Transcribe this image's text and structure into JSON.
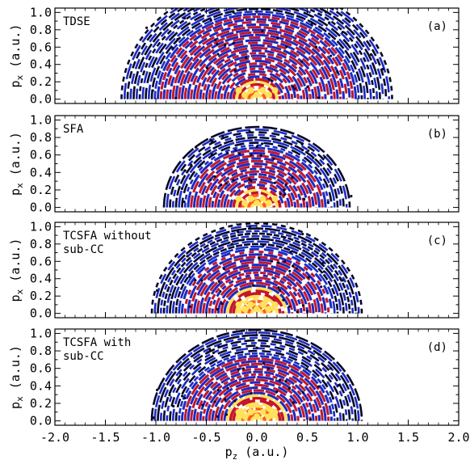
{
  "colors": {
    "ring_dark": "#060628",
    "ring_blue": "#1a2bc2",
    "ring_red": "#c4162a",
    "ring_orange": "#ff5a1e",
    "ring_yellow": "#ffe25a",
    "axis": "#000000",
    "background": "#ffffff"
  },
  "x_axis": {
    "label_main": "p",
    "label_sub": "z",
    "label_unit": " (a.u.)",
    "range": [
      -2.0,
      2.0
    ],
    "ticks": [
      {
        "value": -2.0,
        "label": "-2.0"
      },
      {
        "value": -1.5,
        "label": "-1.5"
      },
      {
        "value": -1.0,
        "label": "-1.0"
      },
      {
        "value": -0.5,
        "label": "-0.5"
      },
      {
        "value": 0.0,
        "label": "0.0"
      },
      {
        "value": 0.5,
        "label": "0.5"
      },
      {
        "value": 1.0,
        "label": "1.0"
      },
      {
        "value": 1.5,
        "label": "1.5"
      },
      {
        "value": 2.0,
        "label": "2.0"
      }
    ]
  },
  "y_axis": {
    "label_main": "p",
    "label_sub": "x",
    "label_unit": " (a.u.)",
    "range": [
      -0.05,
      1.05
    ],
    "ticks": [
      {
        "value": 0.0,
        "label": "0.0"
      },
      {
        "value": 0.2,
        "label": "0.2"
      },
      {
        "value": 0.4,
        "label": "0.4"
      },
      {
        "value": 0.6,
        "label": "0.6"
      },
      {
        "value": 0.8,
        "label": "0.8"
      },
      {
        "value": 1.0,
        "label": "1.0"
      }
    ]
  },
  "chart_data": [
    {
      "type": "heatmap",
      "panel": "(a)",
      "title_lines": [
        "TDSE"
      ],
      "xlabel": "",
      "ylabel": "px (a.u.)",
      "xlim": [
        -2.0,
        2.0
      ],
      "ylim": [
        -0.05,
        1.05
      ],
      "description_values": {
        "max_radius": 1.37,
        "ring_spacing": 0.06,
        "bright_core_radius": 0.25
      }
    },
    {
      "type": "heatmap",
      "panel": "(b)",
      "title_lines": [
        "SFA"
      ],
      "xlabel": "",
      "ylabel": "px (a.u.)",
      "xlim": [
        -2.0,
        2.0
      ],
      "ylim": [
        -0.05,
        1.05
      ],
      "description_values": {
        "max_radius": 0.95,
        "ring_spacing": 0.06,
        "bright_core_radius": 0.25
      }
    },
    {
      "type": "heatmap",
      "panel": "(c)",
      "title_lines": [
        "TCSFA without",
        "sub-CC"
      ],
      "xlabel": "",
      "ylabel": "px (a.u.)",
      "xlim": [
        -2.0,
        2.0
      ],
      "ylim": [
        -0.05,
        1.05
      ],
      "description_values": {
        "max_radius": 1.05,
        "ring_spacing": 0.06,
        "bright_core_radius": 0.3
      }
    },
    {
      "type": "heatmap",
      "panel": "(d)",
      "title_lines": [
        "TCSFA with",
        "sub-CC"
      ],
      "xlabel": "pz (a.u.)",
      "ylabel": "px (a.u.)",
      "xlim": [
        -2.0,
        2.0
      ],
      "ylim": [
        -0.05,
        1.05
      ],
      "description_values": {
        "max_radius": 1.05,
        "ring_spacing": 0.06,
        "bright_core_radius": 0.3
      }
    }
  ]
}
